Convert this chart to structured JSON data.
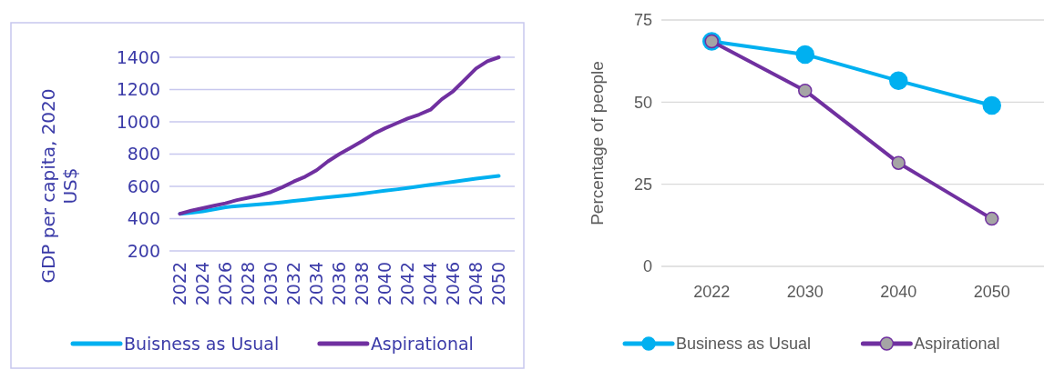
{
  "chart_data": [
    {
      "type": "line",
      "ylabel": "GDP per capita, 2020 US$",
      "categories": [
        "2022",
        null,
        "2024",
        null,
        "2026",
        null,
        "2028",
        null,
        "2030",
        null,
        "2032",
        null,
        "2034",
        null,
        "2036",
        null,
        "2038",
        null,
        "2040",
        null,
        "2042",
        null,
        "2044",
        null,
        "2046",
        null,
        "2048",
        null,
        "2050"
      ],
      "ylim": [
        200,
        1400
      ],
      "yticks": [
        200,
        400,
        600,
        800,
        1000,
        1200,
        1400
      ],
      "grid": "y",
      "legend": "bottom",
      "marker": "none",
      "series": [
        {
          "name": "Buisness as Usual",
          "color": "#00b0f0",
          "values": [
            430,
            437,
            445,
            457,
            470,
            478,
            483,
            489,
            495,
            502,
            510,
            517,
            525,
            532,
            540,
            547,
            555,
            564,
            573,
            581,
            590,
            600,
            610,
            619,
            628,
            638,
            648,
            656,
            665
          ]
        },
        {
          "name": "Aspirational",
          "color": "#7030a0",
          "values": [
            430,
            450,
            465,
            480,
            495,
            515,
            530,
            545,
            565,
            595,
            630,
            660,
            700,
            755,
            800,
            840,
            880,
            925,
            960,
            990,
            1020,
            1045,
            1075,
            1140,
            1190,
            1260,
            1330,
            1375,
            1400
          ]
        }
      ]
    },
    {
      "type": "line",
      "ylabel": "Percentage of people",
      "categories": [
        "2022",
        "2030",
        "2040",
        "2050"
      ],
      "ylim": [
        0,
        75
      ],
      "yticks": [
        0,
        25,
        50,
        75
      ],
      "grid": "y",
      "legend": "bottom",
      "marker": "circle",
      "series": [
        {
          "name": "Business as Usual",
          "color": "#00b0f0",
          "values": [
            68.5,
            64.5,
            56.5,
            49
          ]
        },
        {
          "name": "Aspirational",
          "color": "#7030a0",
          "values": [
            68.5,
            53.5,
            31.5,
            14.5
          ]
        }
      ]
    }
  ]
}
